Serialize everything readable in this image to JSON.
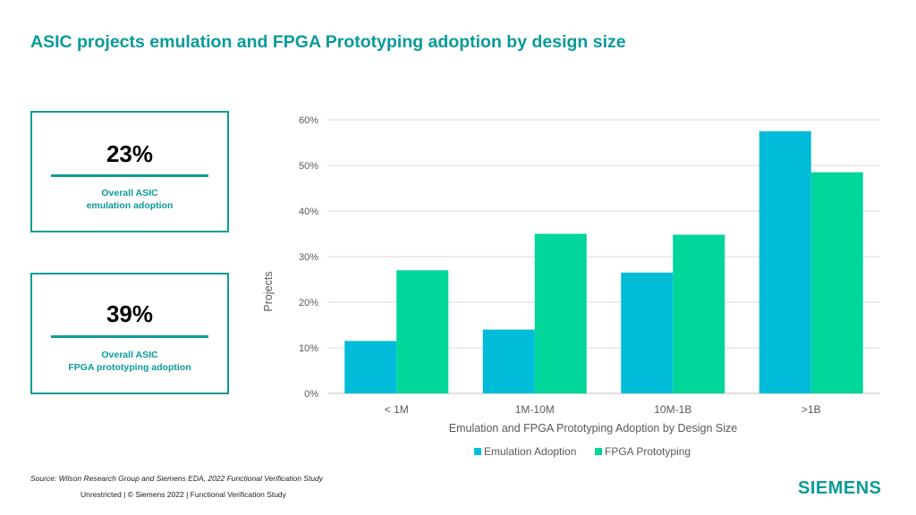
{
  "title": "ASIC projects emulation and FPGA Prototyping adoption by design size",
  "stats": [
    {
      "value": "23%",
      "caption_lines": [
        "Overall ASIC",
        "emulation adoption"
      ]
    },
    {
      "value": "39%",
      "caption_lines": [
        "Overall ASIC",
        "FPGA prototyping adoption"
      ]
    }
  ],
  "source": "Source:  Wilson Research Group and Siemens EDA, 2022 Functional Verification Study",
  "footer": "Unrestricted | © Siemens 2022 |  Functional Verification Study",
  "logo": "SIEMENS",
  "colors": {
    "accent": "#0f9b98",
    "emulation": "#00bcd9",
    "fpga": "#00d59a"
  },
  "chart_data": {
    "type": "bar",
    "categories": [
      "< 1M",
      "1M-10M",
      "10M-1B",
      ">1B"
    ],
    "series": [
      {
        "name": "Emulation Adoption",
        "values": [
          11.5,
          14,
          26.5,
          57.5
        ]
      },
      {
        "name": "FPGA Prototyping",
        "values": [
          27,
          35,
          34.8,
          48.5
        ]
      }
    ],
    "xlabel": "Emulation and FPGA Prototyping Adoption by Design Size",
    "ylabel": "Projects",
    "ylim": [
      0,
      60
    ],
    "yticks": [
      0,
      10,
      20,
      30,
      40,
      50,
      60
    ],
    "ytick_labels": [
      "0%",
      "10%",
      "20%",
      "30%",
      "40%",
      "50%",
      "60%"
    ],
    "grid": true,
    "legend_position": "bottom"
  }
}
